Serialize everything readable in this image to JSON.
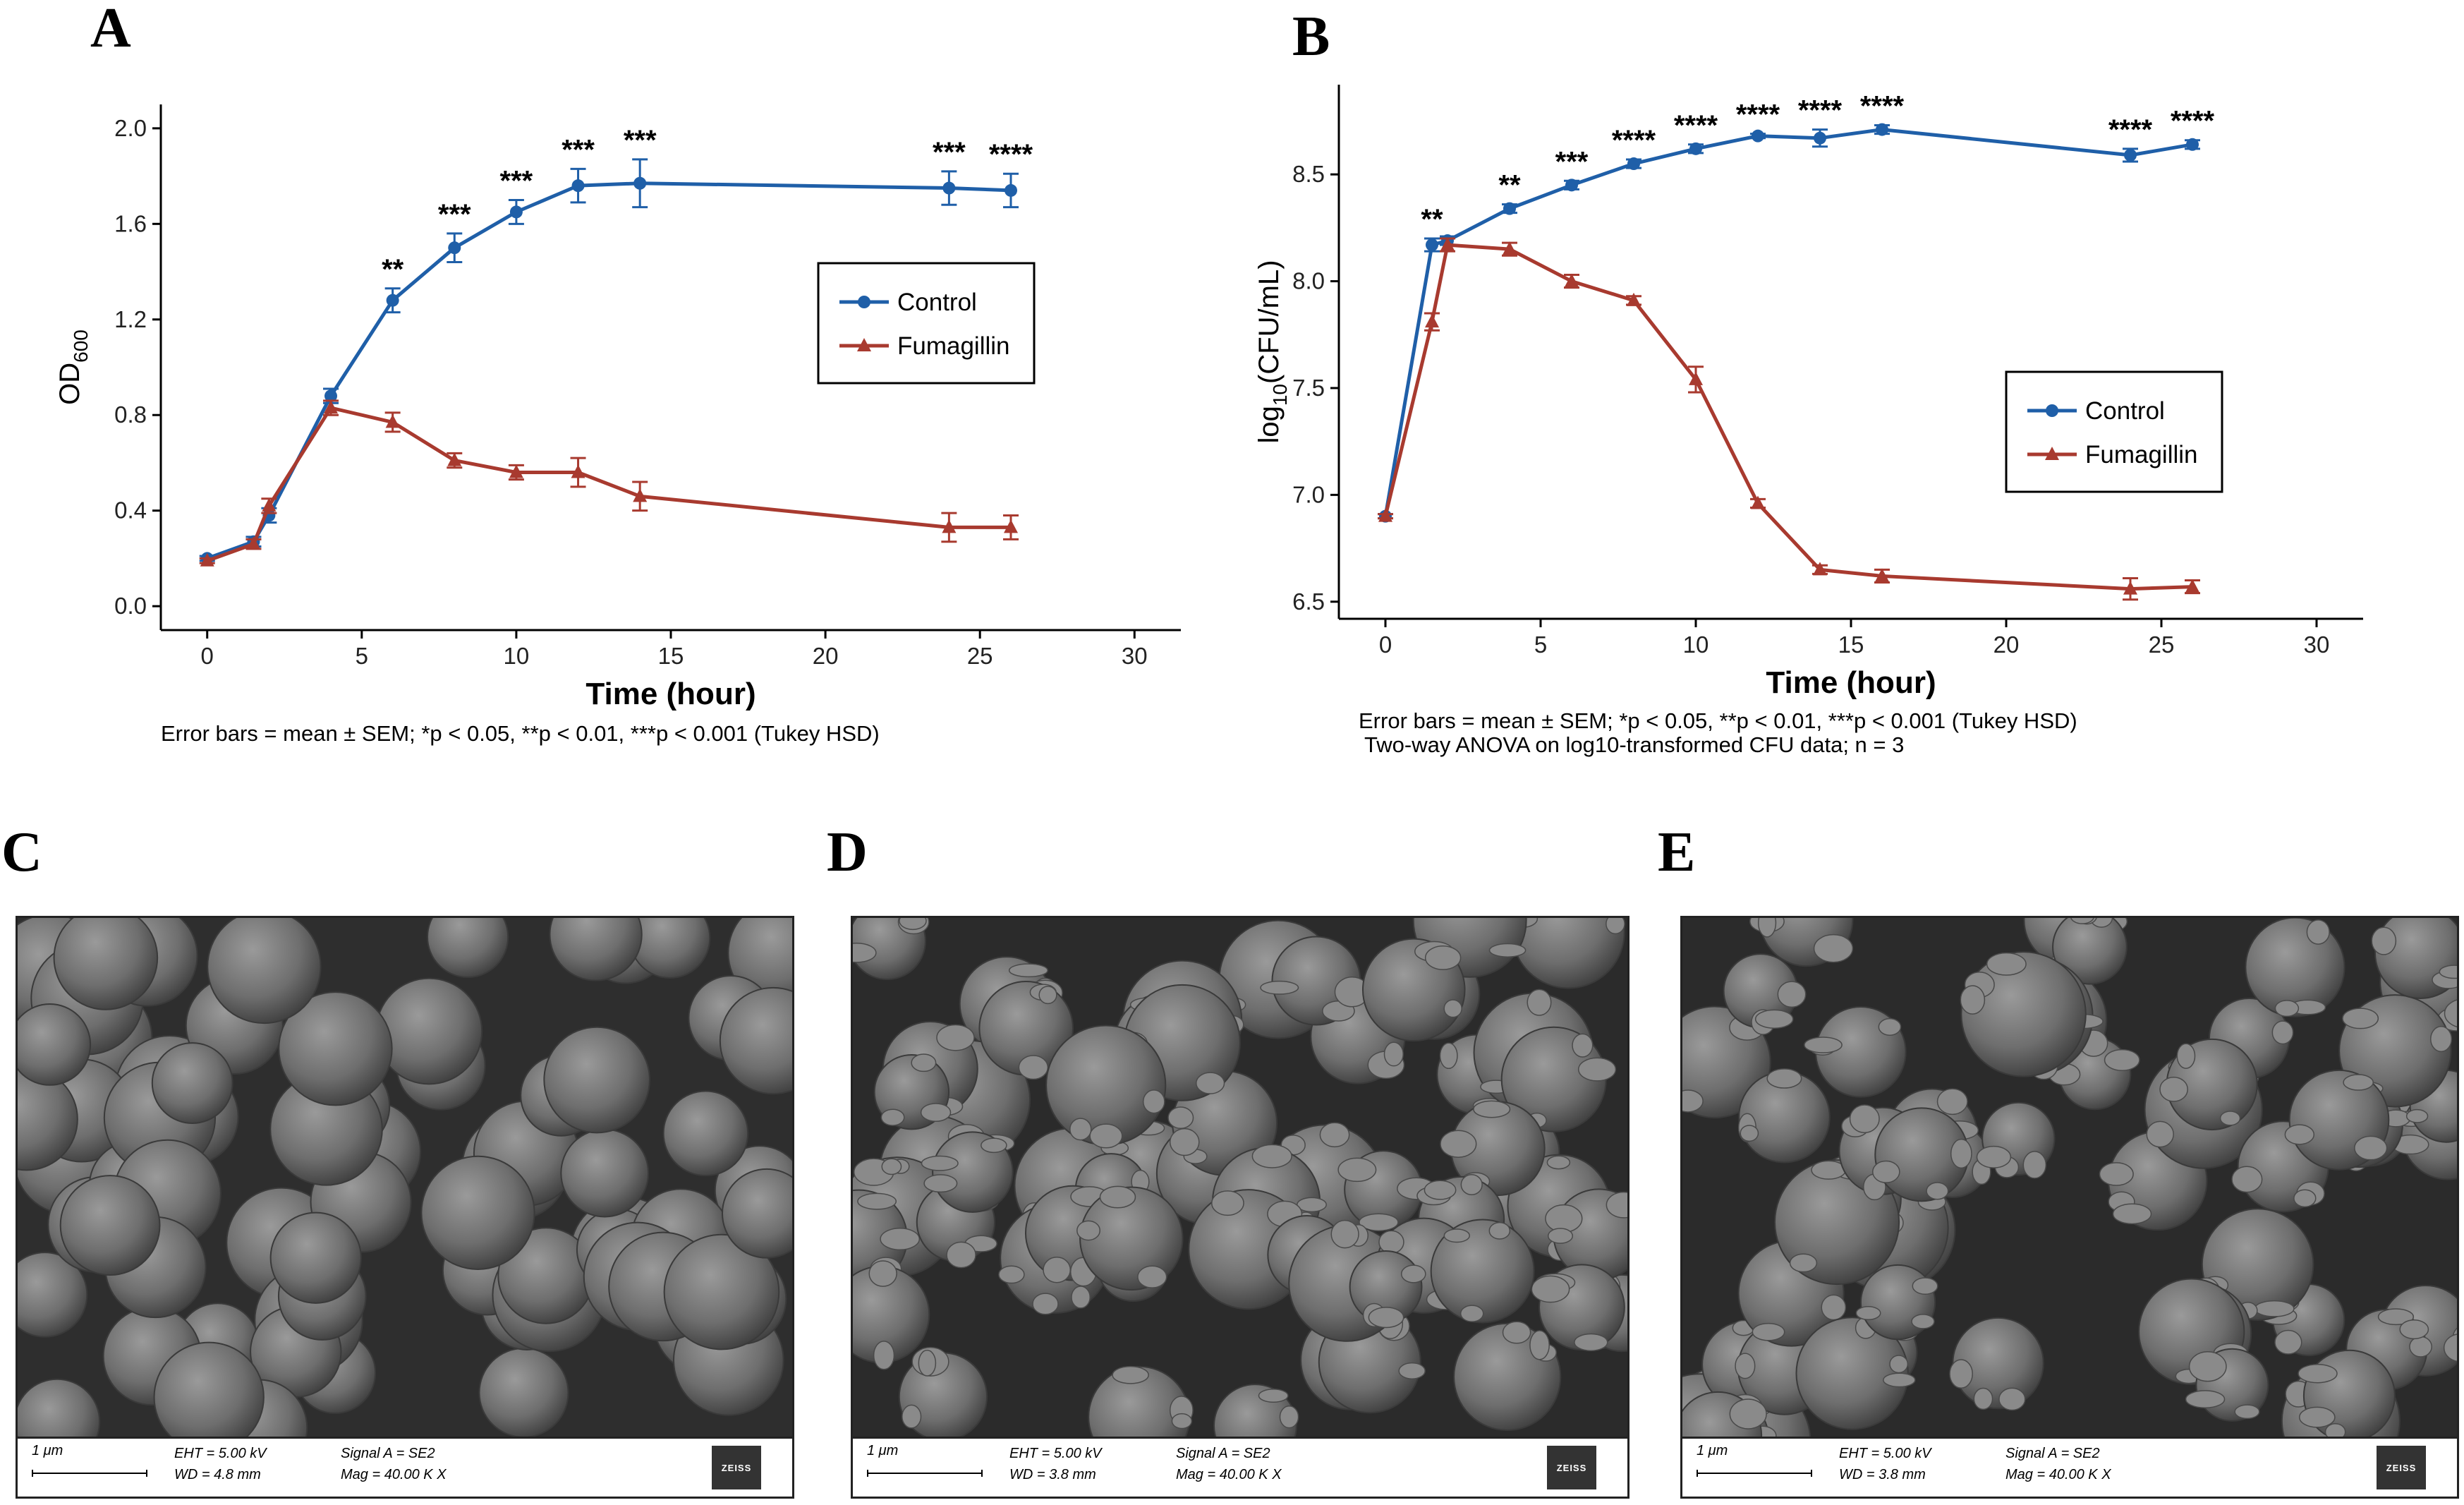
{
  "panels": {
    "a": "A",
    "b": "B",
    "c": "C",
    "d": "D",
    "e": "E"
  },
  "colors": {
    "control": "#1f5fa8",
    "fumagillin": "#a83a2f"
  },
  "chart_data": [
    {
      "id": "A",
      "type": "line",
      "xlabel": "Time (hour)",
      "ylabel": "OD",
      "ylabel_sub": "600",
      "xlim": [
        -1.5,
        31.5
      ],
      "ylim": [
        -0.1,
        2.1
      ],
      "xticks": [
        0,
        5,
        10,
        15,
        20,
        25,
        30
      ],
      "yticks": [
        0.0,
        0.4,
        0.8,
        1.2,
        1.6,
        2.0
      ],
      "ytick_labels": [
        "0.0",
        "0.4",
        "0.8",
        "1.2",
        "1.6",
        "2.0"
      ],
      "x": [
        0,
        1.5,
        2,
        4,
        6,
        8,
        10,
        12,
        14,
        24,
        26
      ],
      "series": [
        {
          "name": "Control",
          "color": "#1f5fa8",
          "marker": "circle",
          "values": [
            0.2,
            0.27,
            0.38,
            0.88,
            1.28,
            1.5,
            1.65,
            1.76,
            1.77,
            1.75,
            1.74
          ],
          "err": [
            0.01,
            0.02,
            0.03,
            0.03,
            0.05,
            0.06,
            0.05,
            0.07,
            0.1,
            0.07,
            0.07
          ]
        },
        {
          "name": "Fumagillin",
          "color": "#a83a2f",
          "marker": "triangle",
          "values": [
            0.19,
            0.26,
            0.42,
            0.83,
            0.77,
            0.61,
            0.56,
            0.56,
            0.46,
            0.33,
            0.33
          ],
          "err": [
            0.01,
            0.02,
            0.03,
            0.03,
            0.04,
            0.03,
            0.03,
            0.06,
            0.06,
            0.06,
            0.05
          ]
        }
      ],
      "annotations": [
        {
          "x": 6,
          "text": "**"
        },
        {
          "x": 8,
          "text": "***"
        },
        {
          "x": 10,
          "text": "***"
        },
        {
          "x": 12,
          "text": "***"
        },
        {
          "x": 14,
          "text": "***"
        },
        {
          "x": 24,
          "text": "***"
        },
        {
          "x": 26,
          "text": "****"
        }
      ],
      "legend": {
        "position": "right",
        "entries": [
          "Control",
          "Fumagillin"
        ]
      },
      "grid": false
    },
    {
      "id": "B",
      "type": "line",
      "xlabel": "Time (hour)",
      "ylabel_pre": "log",
      "ylabel_sub": "10",
      "ylabel_post": "(CFU/mL)",
      "xlim": [
        -1.5,
        31.5
      ],
      "ylim": [
        6.42,
        8.92
      ],
      "xticks": [
        0,
        5,
        10,
        15,
        20,
        25,
        30
      ],
      "yticks": [
        6.5,
        7.0,
        7.5,
        8.0,
        8.5
      ],
      "ytick_labels": [
        "6.5",
        "7.0",
        "7.5",
        "8.0",
        "8.5"
      ],
      "x": [
        0,
        1.5,
        2,
        4,
        6,
        8,
        10,
        12,
        14,
        16,
        24,
        26
      ],
      "series": [
        {
          "name": "Control",
          "color": "#1f5fa8",
          "marker": "circle",
          "values": [
            6.9,
            8.17,
            8.19,
            8.34,
            8.45,
            8.55,
            8.62,
            8.68,
            8.67,
            8.71,
            8.59,
            8.64
          ],
          "err": [
            0.01,
            0.03,
            0.02,
            0.02,
            0.02,
            0.02,
            0.02,
            0.01,
            0.04,
            0.02,
            0.03,
            0.02
          ]
        },
        {
          "name": "Fumagillin",
          "color": "#a83a2f",
          "marker": "triangle",
          "values": [
            6.9,
            7.81,
            8.17,
            8.15,
            8.0,
            7.91,
            7.54,
            6.96,
            6.65,
            6.62,
            6.56,
            6.57
          ],
          "err": [
            0.01,
            0.04,
            0.03,
            0.03,
            0.03,
            0.02,
            0.06,
            0.02,
            0.02,
            0.03,
            0.05,
            0.03
          ]
        }
      ],
      "annotations": [
        {
          "x": 1.5,
          "text": "**"
        },
        {
          "x": 4,
          "text": "**"
        },
        {
          "x": 6,
          "text": "***"
        },
        {
          "x": 8,
          "text": "****"
        },
        {
          "x": 10,
          "text": "****"
        },
        {
          "x": 12,
          "text": "****"
        },
        {
          "x": 14,
          "text": "****"
        },
        {
          "x": 16,
          "text": "****"
        },
        {
          "x": 24,
          "text": "****"
        },
        {
          "x": 26,
          "text": "****"
        }
      ],
      "legend": {
        "position": "right",
        "entries": [
          "Control",
          "Fumagillin"
        ]
      },
      "grid": false
    }
  ],
  "notes": {
    "a": "Error bars = mean ± SEM; *p < 0.05, **p < 0.01, ***p < 0.001 (Tukey HSD)",
    "b1": "Error bars = mean ± SEM; *p < 0.05, **p < 0.01, ***p < 0.001 (Tukey HSD)",
    "b2": " Two-way ANOVA on log10-transformed CFU data; n = 3"
  },
  "sem": [
    {
      "scale": "1 μm",
      "eht": "EHT =  5.00 kV",
      "wd": "WD =  4.8 mm",
      "signal": "Signal A = SE2",
      "mag": "Mag =  40.00 K X",
      "logo": "ZEISS"
    },
    {
      "scale": "1 μm",
      "eht": "EHT =  5.00 kV",
      "wd": "WD =  3.8 mm",
      "signal": "Signal A = SE2",
      "mag": "Mag =  40.00 K X",
      "logo": "ZEISS"
    },
    {
      "scale": "1 μm",
      "eht": "EHT =  5.00 kV",
      "wd": "WD =  3.8 mm",
      "signal": "Signal A = SE2",
      "mag": "Mag =  40.00 K X",
      "logo": "ZEISS"
    }
  ]
}
